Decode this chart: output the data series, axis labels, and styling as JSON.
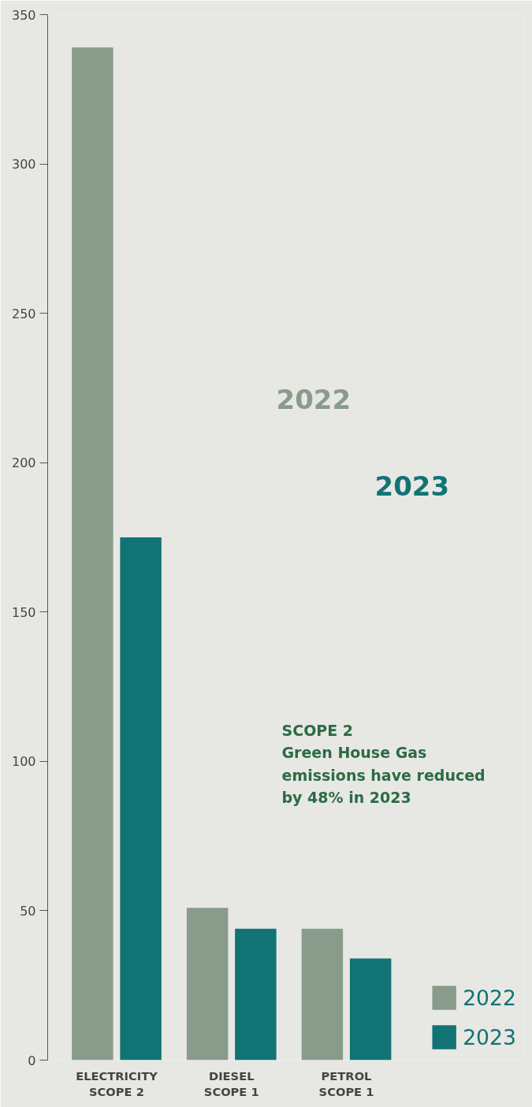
{
  "chart_data": {
    "type": "bar",
    "categories": [
      "ELECTRICITY\nSCOPE 2",
      "DIESEL\nSCOPE 1",
      "PETROL\nSCOPE 1"
    ],
    "series": [
      {
        "name": "2022",
        "color": "#899b8b",
        "values": [
          339,
          51,
          44
        ]
      },
      {
        "name": "2023",
        "color": "#127374",
        "values": [
          175,
          44,
          34
        ]
      }
    ],
    "ylim": [
      0,
      350
    ],
    "yticks": [
      0,
      50,
      100,
      150,
      200,
      250,
      300,
      350
    ],
    "legend": "bottom right",
    "annotations": [
      "2022",
      "2023",
      "SCOPE 2\nGreen House Gas\nemissions have reduced\nby 48% in 2023"
    ]
  }
}
